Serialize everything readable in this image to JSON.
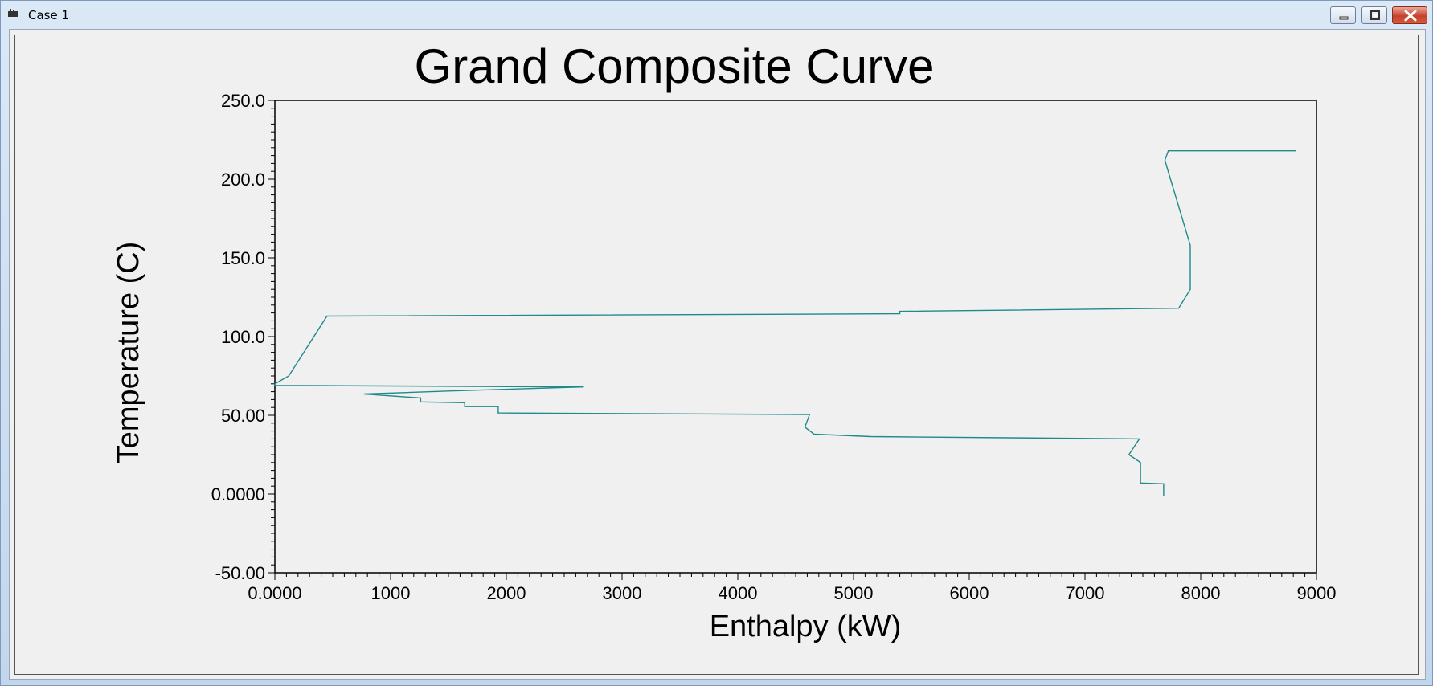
{
  "window": {
    "title": "Case 1",
    "buttons": {
      "minimize_icon": "minimize-icon",
      "maximize_icon": "restore-icon",
      "close_icon": "close-icon"
    }
  },
  "colors": {
    "curve": "#1f8a8a",
    "plot_bg": "#f0f0f0",
    "frame": "#000000"
  },
  "chart_data": {
    "type": "line",
    "title": "Grand Composite Curve",
    "xlabel": "Enthalpy (kW)",
    "ylabel": "Temperature (C)",
    "xlim": [
      0,
      9000
    ],
    "ylim": [
      -50,
      250
    ],
    "grid": false,
    "x_ticks": [
      0,
      1000,
      2000,
      3000,
      4000,
      5000,
      6000,
      7000,
      8000,
      9000
    ],
    "x_tick_labels": [
      "0.0000",
      "1000",
      "2000",
      "3000",
      "4000",
      "5000",
      "6000",
      "7000",
      "8000",
      "9000"
    ],
    "y_ticks": [
      250,
      200,
      150,
      100,
      50,
      0,
      -50
    ],
    "y_tick_labels": [
      "250.0",
      "200.0",
      "150.0",
      "100.0",
      "50.00",
      "0.0000",
      "-50.00"
    ],
    "series": [
      {
        "points": [
          [
            8820,
            218
          ],
          [
            7720,
            218
          ],
          [
            7690,
            212
          ],
          [
            7910,
            158
          ],
          [
            7910,
            130
          ],
          [
            7810,
            118
          ],
          [
            5400,
            116
          ],
          [
            5400,
            114.5
          ],
          [
            450,
            113
          ],
          [
            120,
            75
          ],
          [
            0,
            70
          ],
          [
            0,
            69
          ],
          [
            2670,
            68
          ],
          [
            1550,
            65.5
          ],
          [
            770,
            63.5
          ],
          [
            1260,
            61
          ],
          [
            1260,
            58.5
          ],
          [
            1640,
            58
          ],
          [
            1640,
            55.5
          ],
          [
            1930,
            55.5
          ],
          [
            1930,
            51.5
          ],
          [
            4620,
            50.5
          ],
          [
            4580,
            42.5
          ],
          [
            4660,
            38
          ],
          [
            5150,
            36.5
          ],
          [
            7470,
            35
          ],
          [
            7380,
            25
          ],
          [
            7480,
            20
          ],
          [
            7480,
            7
          ],
          [
            7680,
            6.5
          ],
          [
            7680,
            -1
          ]
        ]
      }
    ]
  }
}
